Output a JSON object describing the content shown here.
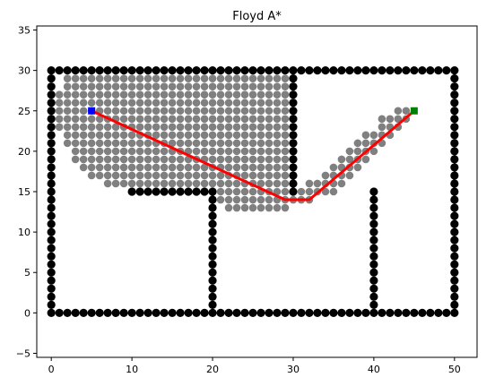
{
  "chart_data": {
    "type": "scatter",
    "title": "Floyd A*",
    "xlabel": "",
    "ylabel": "",
    "xlim": [
      -1.8,
      52.8
    ],
    "ylim": [
      -5.5,
      35.5
    ],
    "xticks": [
      0,
      10,
      20,
      30,
      40,
      50
    ],
    "yticks": [
      -5,
      0,
      5,
      10,
      15,
      20,
      25,
      30,
      35
    ],
    "grid": false,
    "legend": "none",
    "colors": {
      "obstacle": "#000000",
      "explored": "#808080",
      "path": "#ff0000",
      "start": "#0000ff",
      "goal": "#008000"
    },
    "obstacles": {
      "marker": "filled circle",
      "segments": [
        {
          "from": [
            0,
            0
          ],
          "to": [
            50,
            0
          ]
        },
        {
          "from": [
            0,
            30
          ],
          "to": [
            50,
            30
          ]
        },
        {
          "from": [
            0,
            0
          ],
          "to": [
            0,
            30
          ]
        },
        {
          "from": [
            50,
            0
          ],
          "to": [
            50,
            30
          ]
        },
        {
          "from": [
            30,
            15
          ],
          "to": [
            30,
            30
          ]
        },
        {
          "from": [
            10,
            15
          ],
          "to": [
            20,
            15
          ]
        },
        {
          "from": [
            20,
            0
          ],
          "to": [
            20,
            15
          ]
        },
        {
          "from": [
            40,
            0
          ],
          "to": [
            40,
            15
          ]
        }
      ]
    },
    "explored": {
      "marker": "filled circle",
      "rows": [
        {
          "y": 29,
          "x": [
            2,
            29
          ]
        },
        {
          "y": 28,
          "x": [
            2,
            29
          ]
        },
        {
          "y": 27,
          "x": [
            1,
            29
          ]
        },
        {
          "y": 26,
          "x": [
            1,
            29
          ]
        },
        {
          "y": 25,
          "x": [
            1,
            29
          ]
        },
        {
          "y": 24,
          "x": [
            1,
            29
          ]
        },
        {
          "y": 23,
          "x": [
            1,
            29
          ]
        },
        {
          "y": 22,
          "x": [
            2,
            29
          ]
        },
        {
          "y": 21,
          "x": [
            2,
            29
          ]
        },
        {
          "y": 20,
          "x": [
            3,
            29
          ]
        },
        {
          "y": 19,
          "x": [
            3,
            29
          ]
        },
        {
          "y": 18,
          "x": [
            4,
            29
          ]
        },
        {
          "y": 17,
          "x": [
            5,
            29
          ]
        },
        {
          "y": 16,
          "x": [
            7,
            29
          ]
        },
        {
          "y": 15,
          "x": [
            21,
            29
          ]
        },
        {
          "y": 14,
          "x": [
            21,
            32
          ]
        },
        {
          "y": 13,
          "x": [
            22,
            29
          ]
        },
        {
          "y": 25,
          "x": [
            43,
            44
          ]
        },
        {
          "y": 24,
          "x": [
            41,
            44
          ]
        },
        {
          "y": 23,
          "x": [
            41,
            43
          ]
        },
        {
          "y": 22,
          "x": [
            39,
            42
          ]
        },
        {
          "y": 21,
          "x": [
            38,
            41
          ]
        },
        {
          "y": 20,
          "x": [
            37,
            40
          ]
        },
        {
          "y": 19,
          "x": [
            36,
            39
          ]
        },
        {
          "y": 18,
          "x": [
            35,
            38
          ]
        },
        {
          "y": 17,
          "x": [
            34,
            37
          ]
        },
        {
          "y": 16,
          "x": [
            32,
            36
          ]
        },
        {
          "y": 15,
          "x": [
            31,
            35
          ]
        }
      ]
    },
    "path": {
      "x": [
        5,
        29,
        32,
        45
      ],
      "y": [
        25,
        14,
        14,
        25
      ]
    },
    "start": {
      "x": 5,
      "y": 25,
      "marker": "square"
    },
    "goal": {
      "x": 45,
      "y": 25,
      "marker": "square"
    }
  }
}
